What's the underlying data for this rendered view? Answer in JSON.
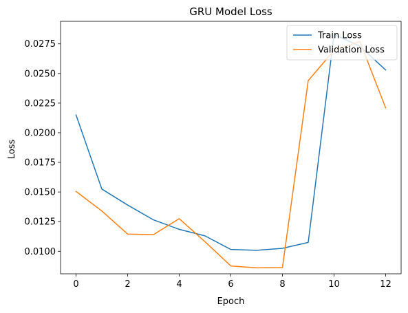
{
  "chart_data": {
    "type": "line",
    "title": "GRU Model Loss",
    "xlabel": "Epoch",
    "ylabel": "Loss",
    "x": [
      0,
      1,
      2,
      3,
      4,
      5,
      6,
      7,
      8,
      9,
      10,
      11,
      12
    ],
    "xlim": [
      -0.6,
      12.6
    ],
    "ylim": [
      0.0081,
      0.0294
    ],
    "xticks": [
      0,
      2,
      4,
      6,
      8,
      10,
      12
    ],
    "xtick_labels": [
      "0",
      "2",
      "4",
      "6",
      "8",
      "10",
      "12"
    ],
    "yticks": [
      0.01,
      0.0125,
      0.015,
      0.0175,
      0.02,
      0.0225,
      0.025,
      0.0275
    ],
    "ytick_labels": [
      "0.0100",
      "0.0125",
      "0.0150",
      "0.0175",
      "0.0200",
      "0.0225",
      "0.0250",
      "0.0275"
    ],
    "grid": false,
    "legend_position": "top-right",
    "series": [
      {
        "name": "Train Loss",
        "color": "#1f77b4",
        "values": [
          0.0215,
          0.01525,
          0.0139,
          0.01265,
          0.01185,
          0.0113,
          0.01015,
          0.01008,
          0.01025,
          0.01075,
          0.0283,
          0.0273,
          0.0253
        ]
      },
      {
        "name": "Validation Loss",
        "color": "#ff7f0e",
        "values": [
          0.01505,
          0.0134,
          0.01145,
          0.0114,
          0.01275,
          0.0108,
          0.00876,
          0.0086,
          0.00862,
          0.0244,
          0.02695,
          0.0277,
          0.0221
        ]
      }
    ]
  }
}
